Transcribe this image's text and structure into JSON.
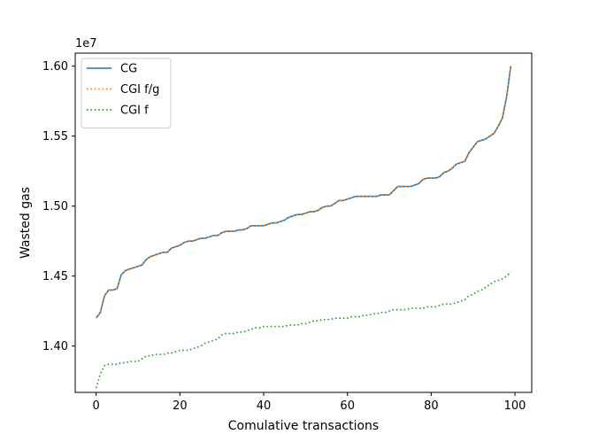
{
  "chart_data": {
    "type": "line",
    "title": "",
    "xlabel": "Comulative transactions",
    "ylabel": "Wasted gas",
    "y_offset_label": "1e7",
    "y_multiplier": 10000000,
    "xlim": [
      -5,
      104
    ],
    "ylim": [
      1.3669,
      1.6093
    ],
    "x_ticks": [
      0,
      20,
      40,
      60,
      80,
      100
    ],
    "x_tick_labels": [
      "0",
      "20",
      "40",
      "60",
      "80",
      "100"
    ],
    "y_ticks": [
      1.4,
      1.45,
      1.5,
      1.55,
      1.6
    ],
    "y_tick_labels": [
      "1.40",
      "1.45",
      "1.50",
      "1.55",
      "1.60"
    ],
    "grid": false,
    "legend_position": "upper-left",
    "series": [
      {
        "name": "CG",
        "color": "#1f77b4",
        "style": "solid",
        "x": [
          0,
          1,
          2,
          3,
          4,
          5,
          6,
          7,
          8,
          9,
          10,
          11,
          12,
          13,
          14,
          15,
          16,
          17,
          18,
          19,
          20,
          21,
          22,
          23,
          24,
          25,
          26,
          27,
          28,
          29,
          30,
          31,
          32,
          33,
          34,
          35,
          36,
          37,
          38,
          39,
          40,
          41,
          42,
          43,
          44,
          45,
          46,
          47,
          48,
          49,
          50,
          51,
          52,
          53,
          54,
          55,
          56,
          57,
          58,
          59,
          60,
          61,
          62,
          63,
          64,
          65,
          66,
          67,
          68,
          69,
          70,
          71,
          72,
          73,
          74,
          75,
          76,
          77,
          78,
          79,
          80,
          81,
          82,
          83,
          84,
          85,
          86,
          87,
          88,
          89,
          90,
          91,
          92,
          93,
          94,
          95,
          96,
          97,
          98,
          99
        ],
        "values": [
          1.42,
          1.424,
          1.436,
          1.44,
          1.44,
          1.441,
          1.451,
          1.454,
          1.455,
          1.456,
          1.457,
          1.458,
          1.462,
          1.464,
          1.465,
          1.466,
          1.467,
          1.467,
          1.47,
          1.471,
          1.472,
          1.474,
          1.475,
          1.475,
          1.476,
          1.477,
          1.477,
          1.478,
          1.479,
          1.479,
          1.481,
          1.482,
          1.482,
          1.482,
          1.483,
          1.483,
          1.484,
          1.486,
          1.486,
          1.486,
          1.486,
          1.487,
          1.488,
          1.488,
          1.489,
          1.49,
          1.492,
          1.493,
          1.494,
          1.494,
          1.495,
          1.496,
          1.496,
          1.497,
          1.499,
          1.5,
          1.5,
          1.502,
          1.504,
          1.504,
          1.505,
          1.506,
          1.507,
          1.507,
          1.507,
          1.507,
          1.507,
          1.507,
          1.508,
          1.508,
          1.508,
          1.511,
          1.514,
          1.514,
          1.514,
          1.514,
          1.515,
          1.516,
          1.519,
          1.52,
          1.52,
          1.52,
          1.521,
          1.524,
          1.525,
          1.527,
          1.53,
          1.531,
          1.532,
          1.538,
          1.542,
          1.546,
          1.547,
          1.548,
          1.55,
          1.552,
          1.557,
          1.563,
          1.578,
          1.6
        ]
      },
      {
        "name": "CGI f/g",
        "color": "#ff7f0e",
        "style": "dotted",
        "x": [
          0,
          1,
          2,
          3,
          4,
          5,
          6,
          7,
          8,
          9,
          10,
          11,
          12,
          13,
          14,
          15,
          16,
          17,
          18,
          19,
          20,
          21,
          22,
          23,
          24,
          25,
          26,
          27,
          28,
          29,
          30,
          31,
          32,
          33,
          34,
          35,
          36,
          37,
          38,
          39,
          40,
          41,
          42,
          43,
          44,
          45,
          46,
          47,
          48,
          49,
          50,
          51,
          52,
          53,
          54,
          55,
          56,
          57,
          58,
          59,
          60,
          61,
          62,
          63,
          64,
          65,
          66,
          67,
          68,
          69,
          70,
          71,
          72,
          73,
          74,
          75,
          76,
          77,
          78,
          79,
          80,
          81,
          82,
          83,
          84,
          85,
          86,
          87,
          88,
          89,
          90,
          91,
          92,
          93,
          94,
          95,
          96,
          97,
          98,
          99
        ],
        "values": [
          1.42,
          1.424,
          1.436,
          1.44,
          1.44,
          1.441,
          1.451,
          1.454,
          1.455,
          1.456,
          1.457,
          1.458,
          1.462,
          1.464,
          1.465,
          1.466,
          1.467,
          1.467,
          1.47,
          1.471,
          1.472,
          1.474,
          1.475,
          1.475,
          1.476,
          1.477,
          1.477,
          1.478,
          1.479,
          1.479,
          1.481,
          1.482,
          1.482,
          1.482,
          1.483,
          1.483,
          1.484,
          1.486,
          1.486,
          1.486,
          1.486,
          1.487,
          1.488,
          1.488,
          1.489,
          1.49,
          1.492,
          1.493,
          1.494,
          1.494,
          1.495,
          1.496,
          1.496,
          1.497,
          1.499,
          1.5,
          1.5,
          1.502,
          1.504,
          1.504,
          1.505,
          1.506,
          1.507,
          1.507,
          1.507,
          1.507,
          1.507,
          1.507,
          1.508,
          1.508,
          1.508,
          1.511,
          1.514,
          1.514,
          1.514,
          1.514,
          1.515,
          1.516,
          1.519,
          1.52,
          1.52,
          1.52,
          1.521,
          1.524,
          1.525,
          1.527,
          1.53,
          1.531,
          1.532,
          1.538,
          1.542,
          1.546,
          1.547,
          1.548,
          1.55,
          1.552,
          1.557,
          1.563,
          1.578,
          1.6
        ]
      },
      {
        "name": "CGI f",
        "color": "#2ca02c",
        "style": "dotted",
        "x": [
          0,
          1,
          2,
          3,
          4,
          5,
          6,
          7,
          8,
          9,
          10,
          11,
          12,
          13,
          14,
          15,
          16,
          17,
          18,
          19,
          20,
          21,
          22,
          23,
          24,
          25,
          26,
          27,
          28,
          29,
          30,
          31,
          32,
          33,
          34,
          35,
          36,
          37,
          38,
          39,
          40,
          41,
          42,
          43,
          44,
          45,
          46,
          47,
          48,
          49,
          50,
          51,
          52,
          53,
          54,
          55,
          56,
          57,
          58,
          59,
          60,
          61,
          62,
          63,
          64,
          65,
          66,
          67,
          68,
          69,
          70,
          71,
          72,
          73,
          74,
          75,
          76,
          77,
          78,
          79,
          80,
          81,
          82,
          83,
          84,
          85,
          86,
          87,
          88,
          89,
          90,
          91,
          92,
          93,
          94,
          95,
          96,
          97,
          98,
          99
        ],
        "values": [
          1.37,
          1.38,
          1.386,
          1.387,
          1.387,
          1.387,
          1.388,
          1.388,
          1.389,
          1.389,
          1.389,
          1.391,
          1.393,
          1.393,
          1.394,
          1.394,
          1.394,
          1.395,
          1.395,
          1.396,
          1.397,
          1.397,
          1.397,
          1.398,
          1.399,
          1.4,
          1.402,
          1.403,
          1.404,
          1.405,
          1.408,
          1.409,
          1.409,
          1.409,
          1.41,
          1.41,
          1.411,
          1.412,
          1.413,
          1.413,
          1.414,
          1.414,
          1.414,
          1.414,
          1.414,
          1.414,
          1.415,
          1.415,
          1.415,
          1.416,
          1.416,
          1.417,
          1.418,
          1.418,
          1.419,
          1.419,
          1.419,
          1.42,
          1.42,
          1.42,
          1.42,
          1.421,
          1.421,
          1.421,
          1.422,
          1.422,
          1.423,
          1.423,
          1.424,
          1.424,
          1.425,
          1.426,
          1.426,
          1.426,
          1.426,
          1.427,
          1.427,
          1.427,
          1.427,
          1.428,
          1.428,
          1.428,
          1.429,
          1.43,
          1.43,
          1.43,
          1.431,
          1.432,
          1.433,
          1.436,
          1.437,
          1.439,
          1.44,
          1.442,
          1.444,
          1.446,
          1.447,
          1.448,
          1.45,
          1.453
        ]
      }
    ]
  }
}
